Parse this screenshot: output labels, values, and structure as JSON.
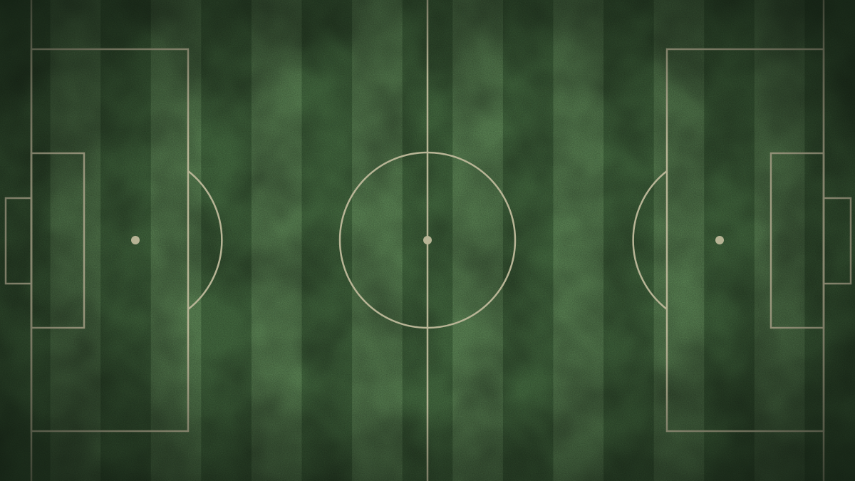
{
  "pitch": {
    "sport": "football",
    "orientation": "horizontal",
    "stripe_count": 17,
    "colors": {
      "grass_light": "#5f8a58",
      "grass_dark": "#476f43",
      "lines": "#b8b596",
      "vignette": "#0f1a10"
    }
  }
}
